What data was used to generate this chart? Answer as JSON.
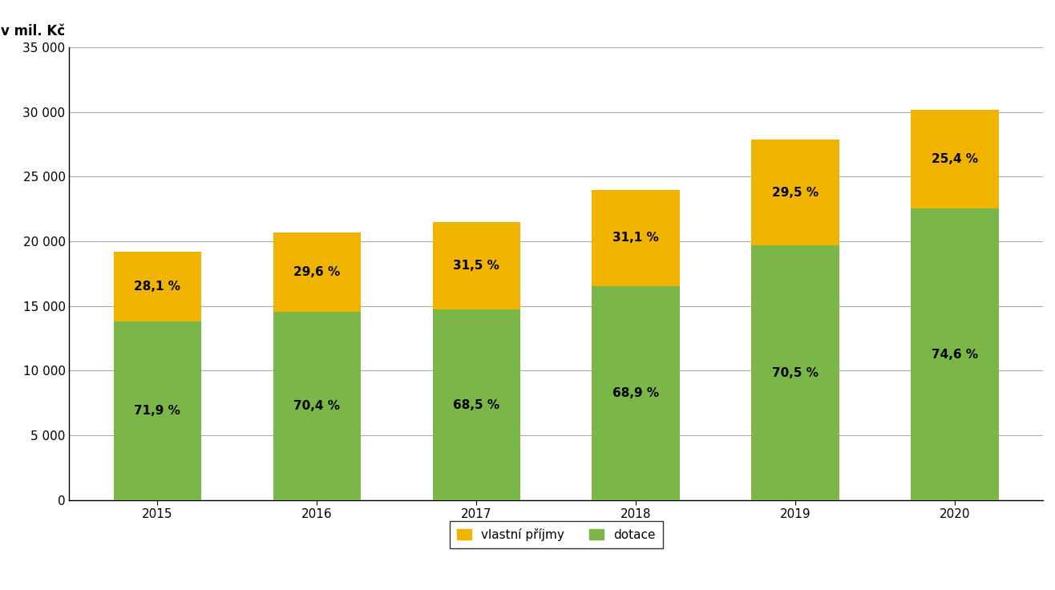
{
  "years": [
    "2015",
    "2016",
    "2017",
    "2018",
    "2019",
    "2020"
  ],
  "dotace": [
    13805,
    14573,
    14728,
    16536,
    19670,
    22529
  ],
  "vlastni_prijmy": [
    5395,
    6127,
    6773,
    7464,
    8231,
    7671
  ],
  "dotace_pct": [
    "71,9 %",
    "70,4 %",
    "68,5 %",
    "68,9 %",
    "70,5 %",
    "74,6 %"
  ],
  "vlastni_pct": [
    "28,1 %",
    "29,6 %",
    "31,5 %",
    "31,1 %",
    "29,5 %",
    "25,4 %"
  ],
  "color_dotace": "#7ab648",
  "color_vlastni": "#f0b400",
  "ylabel": "v mil. Kč",
  "ylim": [
    0,
    35000
  ],
  "yticks": [
    0,
    5000,
    10000,
    15000,
    20000,
    25000,
    30000,
    35000
  ],
  "legend_vlastni": "vlastní příjmy",
  "legend_dotace": "dotace",
  "background_color": "#ffffff",
  "plot_bg_color": "#ffffff",
  "grid_color": "#aaaaaa",
  "bar_width": 0.55,
  "axis_fontsize": 11,
  "pct_fontsize": 11,
  "ylabel_fontsize": 12
}
